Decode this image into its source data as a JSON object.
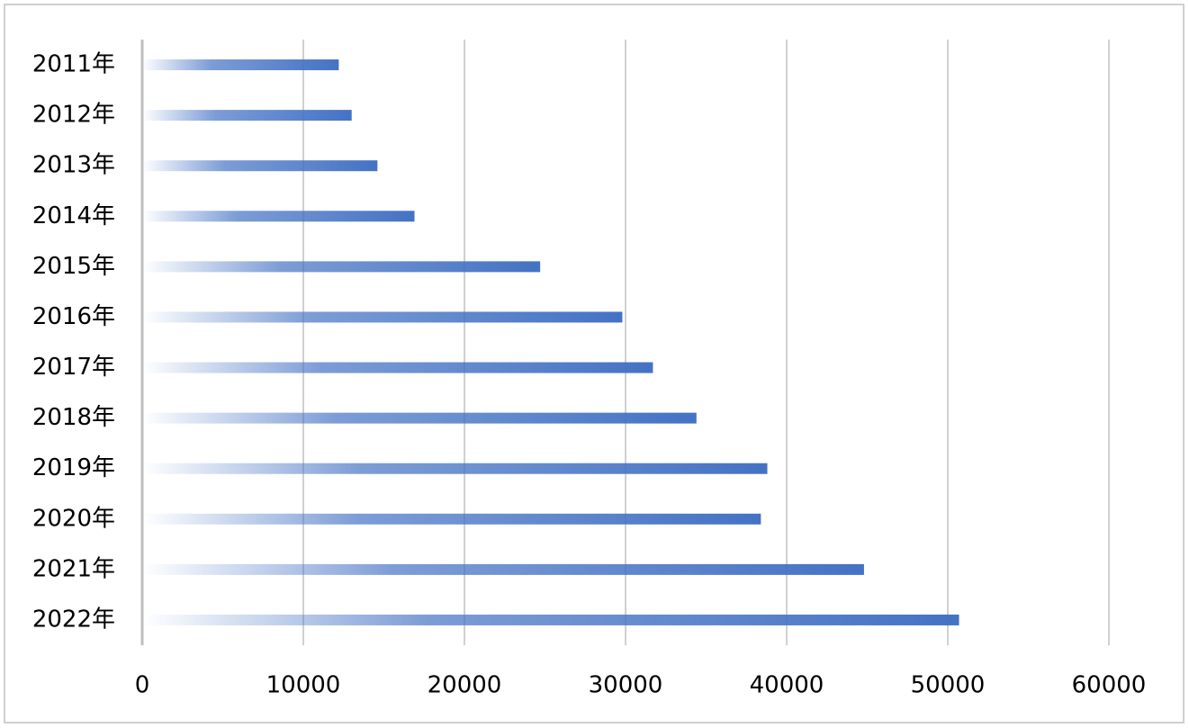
{
  "chart_data": {
    "type": "barh",
    "categories": [
      "2011年",
      "2012年",
      "2013年",
      "2014年",
      "2015年",
      "2016年",
      "2017年",
      "2018年",
      "2019年",
      "2020年",
      "2021年",
      "2022年"
    ],
    "values": [
      12200,
      13000,
      14600,
      16900,
      24700,
      29800,
      31700,
      34400,
      38800,
      38400,
      44800,
      50700
    ],
    "color": "#4472c4",
    "xlim": [
      0,
      60000
    ],
    "xticks": [
      0,
      10000,
      20000,
      30000,
      40000,
      50000,
      60000
    ],
    "grid": true
  }
}
